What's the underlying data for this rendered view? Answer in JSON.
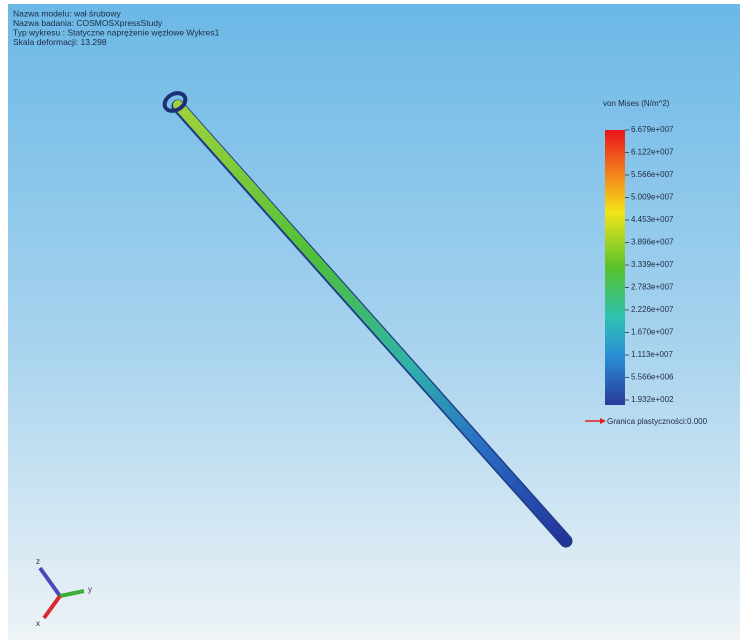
{
  "header": {
    "lines": [
      "Nazwa modelu: wał śrubowy",
      "Nazwa badania: COSMOSXpressStudy",
      "Typ wykresu : Statyczne naprężenie węzłowe Wykres1",
      "Skala deformacji: 13.298"
    ]
  },
  "legend": {
    "title": "von Mises (N/m^2)",
    "labels": [
      "6.679e+007",
      "6.122e+007",
      "5.566e+007",
      "5.009e+007",
      "4.453e+007",
      "3.896e+007",
      "3.339e+007",
      "2.783e+007",
      "2.226e+007",
      "1.670e+007",
      "1.113e+007",
      "5.566e+006",
      "1.932e+002"
    ],
    "yield_label": "Granica plastyczności:0.000"
  },
  "triad": {
    "x": "x",
    "y": "y",
    "z": "z"
  }
}
